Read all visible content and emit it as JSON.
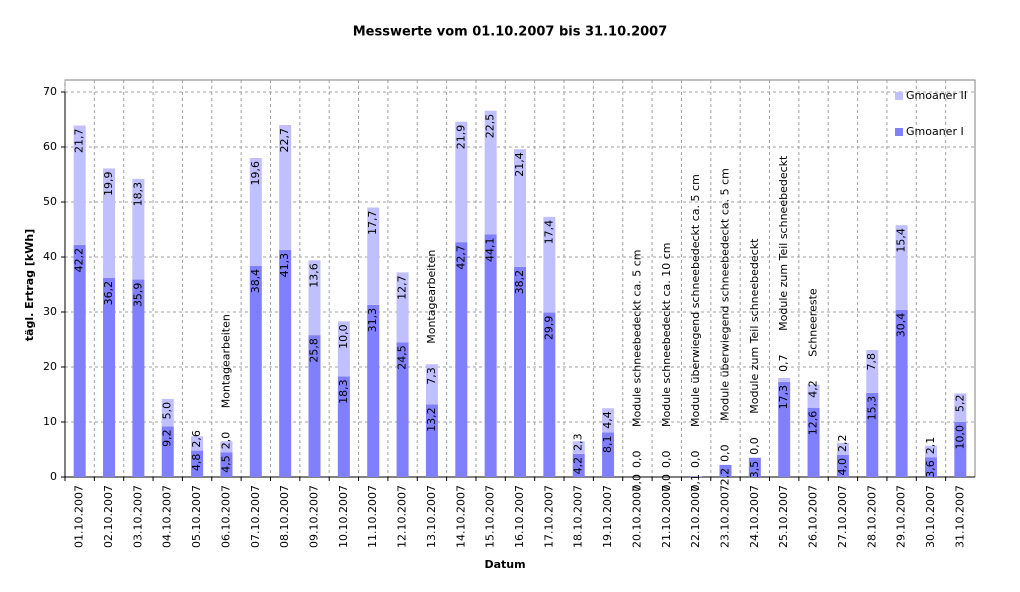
{
  "chart_data": {
    "type": "stacked_bar",
    "title": "Messwerte vom 01.10.2007 bis 31.10.2007",
    "x_label": "Datum",
    "y_label": "tägl. Ertrag [kWh]",
    "categories": [
      "01.10.2007",
      "02.10.2007",
      "03.10.2007",
      "04.10.2007",
      "05.10.2007",
      "06.10.2007",
      "07.10.2007",
      "08.10.2007",
      "09.10.2007",
      "10.10.2007",
      "11.10.2007",
      "12.10.2007",
      "13.10.2007",
      "14.10.2007",
      "15.10.2007",
      "16.10.2007",
      "17.10.2007",
      "18.10.2007",
      "19.10.2007",
      "20.10.2007",
      "21.10.2007",
      "22.10.2007",
      "23.10.2007",
      "24.10.2007",
      "25.10.2007",
      "26.10.2007",
      "27.10.2007",
      "28.10.2007",
      "29.10.2007",
      "30.10.2007",
      "31.10.2007"
    ],
    "series": [
      {
        "name": "Gmoaner I",
        "color": "#8080ff",
        "values": [
          42.2,
          36.2,
          35.9,
          9.2,
          4.8,
          4.5,
          38.4,
          41.3,
          25.8,
          18.3,
          31.3,
          24.5,
          13.2,
          42.7,
          44.1,
          38.2,
          29.9,
          4.2,
          8.1,
          0.0,
          0.0,
          0.1,
          2.2,
          3.5,
          17.3,
          12.6,
          4.0,
          15.3,
          30.4,
          3.6,
          10.0
        ],
        "value_labels": [
          "42,2",
          "36,2",
          "35,9",
          "9,2",
          "4,8",
          "4,5",
          "38,4",
          "41,3",
          "25,8",
          "18,3",
          "31,3",
          "24,5",
          "13,2",
          "42,7",
          "44,1",
          "38,2",
          "29,9",
          "4,2",
          "8,1",
          "0,0",
          "0,0",
          "0,1",
          "2,2",
          "3,5",
          "17,3",
          "12,6",
          "4,0",
          "15,3",
          "30,4",
          "3,6",
          "10,0"
        ]
      },
      {
        "name": "Gmoaner II",
        "color": "#c0c0ff",
        "values": [
          21.7,
          19.9,
          18.3,
          5.0,
          2.6,
          2.0,
          19.6,
          22.7,
          13.6,
          10.0,
          17.7,
          12.7,
          7.3,
          21.9,
          22.5,
          21.4,
          17.4,
          2.3,
          4.4,
          0.0,
          0.0,
          0.0,
          0.0,
          0.0,
          0.7,
          4.2,
          2.2,
          7.8,
          15.4,
          2.1,
          5.2
        ],
        "value_labels": [
          "21,7",
          "19,9",
          "18,3",
          "5,0",
          "2,6",
          "2,0",
          "19,6",
          "22,7",
          "13,6",
          "10,0",
          "17,7",
          "12,7",
          "7,3",
          "21,9",
          "22,5",
          "21,4",
          "17,4",
          "2,3",
          "4,4",
          "0,0",
          "0,0",
          "0,0",
          "0,0",
          "0,0",
          "0,7",
          "4,2",
          "2,2",
          "7,8",
          "15,4",
          "2,1",
          "5,2"
        ]
      }
    ],
    "annotations": [
      null,
      null,
      null,
      null,
      null,
      "Montagearbeiten",
      null,
      null,
      null,
      null,
      null,
      null,
      "Montagearbeiten",
      null,
      null,
      null,
      null,
      null,
      null,
      "Module schneebedeckt ca. 5 cm",
      "Module schneebedeckt ca. 10 cm",
      "Module überwiegend schneebedeckt ca. 5 cm",
      "Module überwiegend schneebedeckt ca. 5 cm",
      "Module zum Teil schneebedeckt",
      "Module zum Teil schneebedeckt",
      "Schneereste",
      null,
      null,
      null,
      null,
      null
    ],
    "ylim": [
      0,
      70
    ],
    "yticks": [
      0,
      10,
      20,
      30,
      40,
      50,
      60,
      70
    ],
    "grid": true,
    "legend": "upper right"
  }
}
